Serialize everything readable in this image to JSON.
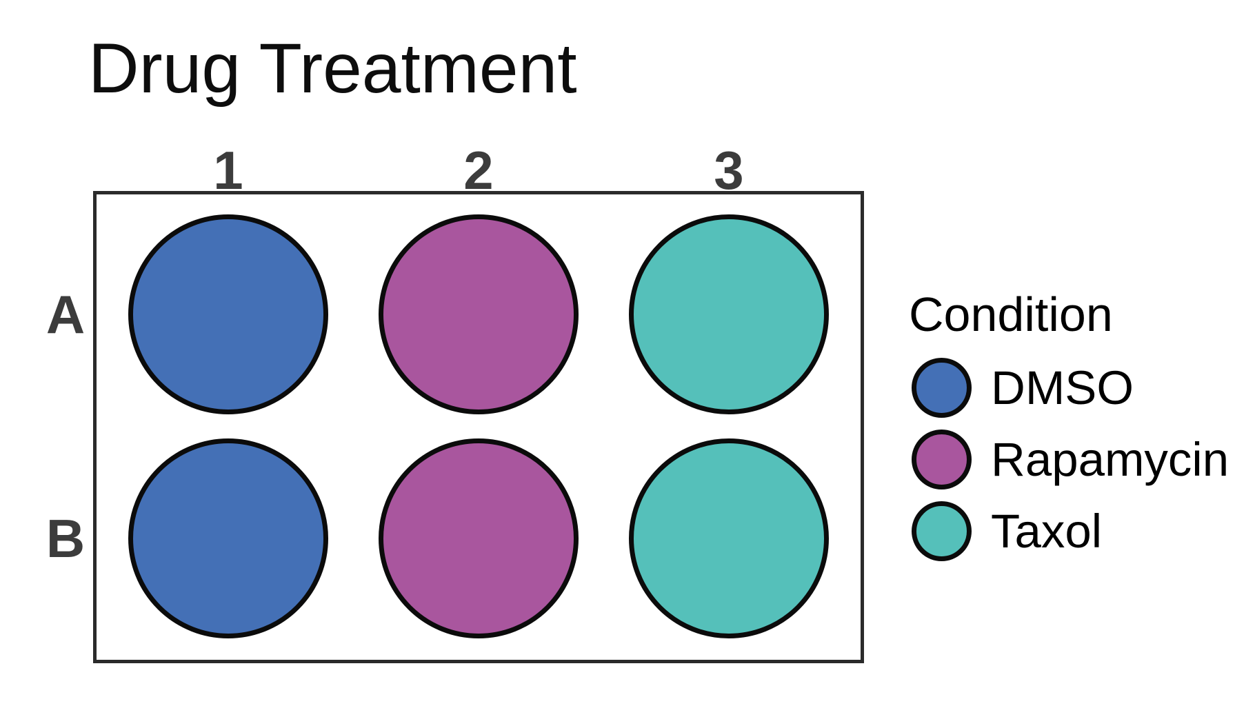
{
  "title": "Drug Treatment",
  "colors": {
    "background": "#ffffff",
    "title_text": "#0d0d0d",
    "axis_label_text": "#3c3c3c",
    "plate_border": "#2b2b2b",
    "well_outline": "#0b0b0b",
    "legend_text": "#000000",
    "conditions": {
      "DMSO": "#4470B6",
      "Rapamycin": "#A9569E",
      "Taxol": "#55C0BA"
    }
  },
  "plate": {
    "columns": [
      "1",
      "2",
      "3"
    ],
    "rows": [
      "A",
      "B"
    ],
    "wells": [
      {
        "well": "A1",
        "row": "A",
        "col": "1",
        "condition": "DMSO"
      },
      {
        "well": "A2",
        "row": "A",
        "col": "2",
        "condition": "Rapamycin"
      },
      {
        "well": "A3",
        "row": "A",
        "col": "3",
        "condition": "Taxol"
      },
      {
        "well": "B1",
        "row": "B",
        "col": "1",
        "condition": "DMSO"
      },
      {
        "well": "B2",
        "row": "B",
        "col": "2",
        "condition": "Rapamycin"
      },
      {
        "well": "B3",
        "row": "B",
        "col": "3",
        "condition": "Taxol"
      }
    ]
  },
  "legend": {
    "title": "Condition",
    "items": [
      {
        "label": "DMSO"
      },
      {
        "label": "Rapamycin"
      },
      {
        "label": "Taxol"
      }
    ]
  },
  "chart_data": {
    "type": "scatter",
    "title": "Drug Treatment",
    "x_categories": [
      "1",
      "2",
      "3"
    ],
    "y_categories": [
      "A",
      "B"
    ],
    "points": [
      {
        "x": "1",
        "y": "A",
        "condition": "DMSO"
      },
      {
        "x": "2",
        "y": "A",
        "condition": "Rapamycin"
      },
      {
        "x": "3",
        "y": "A",
        "condition": "Taxol"
      },
      {
        "x": "1",
        "y": "B",
        "condition": "DMSO"
      },
      {
        "x": "2",
        "y": "B",
        "condition": "Rapamycin"
      },
      {
        "x": "3",
        "y": "B",
        "condition": "Taxol"
      }
    ],
    "series_colors": {
      "DMSO": "#4470B6",
      "Rapamycin": "#A9569E",
      "Taxol": "#55C0BA"
    },
    "legend_title": "Condition",
    "legend_entries": [
      "DMSO",
      "Rapamycin",
      "Taxol"
    ],
    "legend_position": "right",
    "grid": false,
    "xlabel": "",
    "ylabel": ""
  }
}
